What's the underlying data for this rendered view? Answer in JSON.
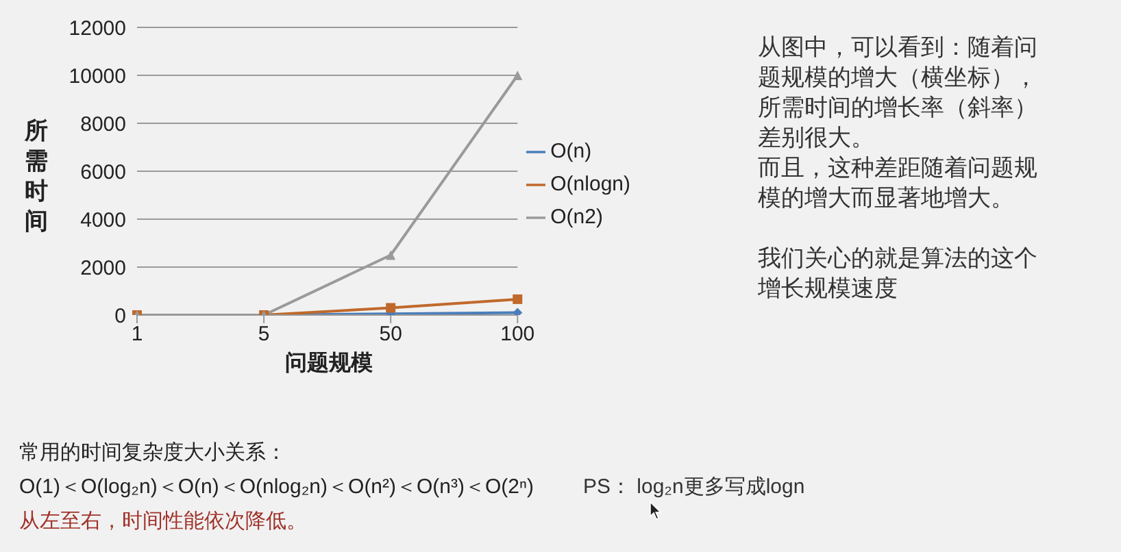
{
  "chart_data": {
    "type": "line",
    "xlabel": "问题规模",
    "ylabel": "所需时间",
    "categories": [
      "1",
      "5",
      "50",
      "100"
    ],
    "series": [
      {
        "name": "O(n)",
        "color": "#4a7ebb",
        "values": [
          0,
          0,
          50,
          100
        ],
        "marker": "diamond"
      },
      {
        "name": "O(nlogn)",
        "color": "#c0692b",
        "values": [
          0,
          0,
          300,
          660
        ],
        "marker": "square"
      },
      {
        "name": "O(n2)",
        "color": "#9a9a9a",
        "values": [
          0,
          0,
          2500,
          10000
        ],
        "marker": "triangle"
      }
    ],
    "ylim": [
      0,
      12000
    ],
    "yticks": [
      0,
      2000,
      4000,
      6000,
      8000,
      10000,
      12000
    ],
    "grid": "y",
    "legend": "right",
    "annotations": [
      "从图中，可以看到：随着问题规模的增大（横坐标），所需时间的增长率（斜率）差别很大。",
      "而且，这种差距随着问题规模的增大而显著地增大。",
      "我们关心的就是算法的这个增长规模速度",
      "常用的时间复杂度大小关系：",
      "O(1)＜O(log₂n)＜O(n)＜O(nlog₂n)＜O(n²)＜O(n³)＜O(2ⁿ)",
      "PS： log₂n更多写成logn",
      "从左至右，时间性能依次降低。"
    ]
  }
}
